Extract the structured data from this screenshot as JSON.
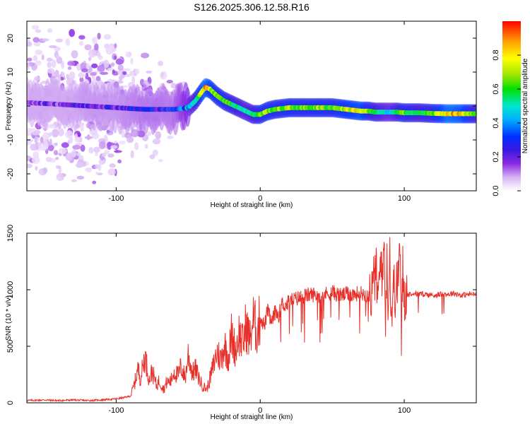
{
  "title": "S126.2025.306.12.58.R16",
  "chart_data": [
    {
      "type": "heatmap",
      "xlabel": "Height of straight line (km)",
      "ylabel": "Frequency (Hz)",
      "xlim": [
        -162,
        150
      ],
      "ylim": [
        -25,
        25
      ],
      "x_ticks": [
        "-100",
        "0",
        "100"
      ],
      "x_tick_values": [
        -100,
        0,
        100
      ],
      "y_ticks": [
        "20",
        "10",
        "0",
        "-10",
        "-20"
      ],
      "y_tick_values": [
        20,
        10,
        0,
        -10,
        -20
      ],
      "colorbar": {
        "label": "Normalized spectral amplitude",
        "range": [
          0,
          1
        ],
        "ticks": [
          "0.0",
          "0.2",
          "0.4",
          "0.6",
          "0.8"
        ],
        "tick_values": [
          0,
          0.2,
          0.4,
          0.6,
          0.8
        ],
        "colormap": [
          "#ffffff",
          "#d7b4f5",
          "#8a2be2",
          "#3a18e0",
          "#0030ff",
          "#00b0ff",
          "#00e6d0",
          "#00e000",
          "#9ae600",
          "#ffff00",
          "#ffa000",
          "#ff0000"
        ]
      },
      "ridge": {
        "x": [
          -162,
          -140,
          -120,
          -100,
          -80,
          -60,
          -50,
          -45,
          -40,
          -38,
          -35,
          -30,
          -25,
          -20,
          -15,
          -10,
          -5,
          0,
          5,
          10,
          20,
          30,
          40,
          50,
          60,
          70,
          75,
          80,
          85,
          90,
          95,
          100,
          110,
          120,
          130,
          140,
          150
        ],
        "y": [
          1,
          0.5,
          0,
          -0.5,
          -1,
          -1,
          -0.5,
          1.5,
          4.5,
          5.5,
          5,
          3,
          1.5,
          0.5,
          -0.5,
          -1.5,
          -2.5,
          -2.5,
          -1.5,
          -1,
          -0.5,
          -0.5,
          -0.5,
          -0.5,
          -1,
          -1.5,
          -1.5,
          -1.8,
          -1.8,
          -1.8,
          -1.8,
          -2,
          -2,
          -2.2,
          -2.3,
          -2.3,
          -2.3
        ],
        "amplitude": [
          0.2,
          0.2,
          0.25,
          0.25,
          0.3,
          0.3,
          0.45,
          0.6,
          0.85,
          0.9,
          0.8,
          0.75,
          0.7,
          0.65,
          0.6,
          0.55,
          0.6,
          0.7,
          0.75,
          0.7,
          0.72,
          0.7,
          0.72,
          0.7,
          0.8,
          0.85,
          0.7,
          0.6,
          0.55,
          0.5,
          0.6,
          0.7,
          0.6,
          0.7,
          0.9,
          0.85,
          0.6
        ]
      }
    },
    {
      "type": "line",
      "xlabel": "Height of straight line (km)",
      "ylabel": "SNR (10 * v/v)",
      "xlim": [
        -162,
        150
      ],
      "ylim": [
        0,
        1500
      ],
      "x_ticks": [
        "-100",
        "0",
        "100"
      ],
      "x_tick_values": [
        -100,
        0,
        100
      ],
      "y_ticks": [
        "0",
        "500",
        "1000",
        "1500"
      ],
      "y_tick_values": [
        0,
        500,
        1000,
        1500
      ],
      "color": "#e8302a",
      "series": [
        {
          "x": [
            -162,
            -150,
            -140,
            -130,
            -120,
            -110,
            -100,
            -95,
            -90,
            -87,
            -85,
            -83,
            -80,
            -77,
            -75,
            -72,
            -70,
            -67,
            -65,
            -62,
            -60,
            -57,
            -55,
            -52,
            -50,
            -47,
            -45,
            -42,
            -40,
            -37,
            -35,
            -32,
            -30,
            -27,
            -25,
            -22,
            -20,
            -17,
            -15,
            -12,
            -10,
            -7,
            -5,
            -2,
            0,
            3,
            5,
            8,
            10,
            13,
            15,
            18,
            20,
            25,
            30,
            35,
            40,
            45,
            50,
            55,
            60,
            65,
            70,
            75,
            78,
            80,
            82,
            84,
            85,
            86,
            87,
            88,
            89,
            90,
            91,
            92,
            95,
            97,
            98,
            99,
            100,
            101,
            102,
            105,
            110,
            115,
            120,
            125,
            130,
            135,
            140,
            145,
            150
          ],
          "y": [
            20,
            25,
            20,
            25,
            20,
            25,
            35,
            45,
            60,
            180,
            300,
            220,
            420,
            200,
            280,
            150,
            200,
            120,
            180,
            190,
            280,
            240,
            320,
            220,
            430,
            260,
            300,
            200,
            150,
            120,
            210,
            350,
            450,
            380,
            520,
            400,
            600,
            460,
            620,
            520,
            680,
            560,
            740,
            620,
            760,
            680,
            820,
            700,
            800,
            780,
            880,
            860,
            900,
            920,
            940,
            960,
            950,
            960,
            980,
            950,
            960,
            960,
            970,
            950,
            980,
            1200,
            900,
            1350,
            1000,
            1500,
            800,
            1200,
            900,
            1380,
            700,
            1000,
            1000,
            1400,
            500,
            1250,
            900,
            1000,
            950,
            970,
            960,
            960,
            950,
            960,
            960,
            970,
            950,
            960,
            960
          ]
        }
      ]
    }
  ]
}
